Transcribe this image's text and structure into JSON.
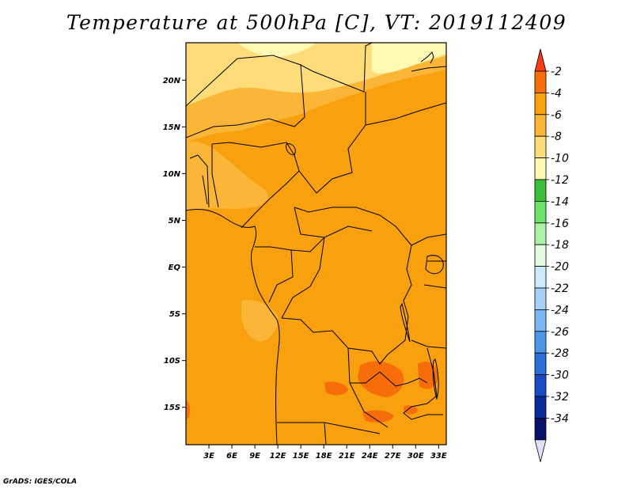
{
  "title": "Temperature at 500hPa [C], VT: 2019112409",
  "credit": "GrADS: IGES/COLA",
  "map": {
    "lon_range": [
      0,
      34
    ],
    "lat_range": [
      -19,
      24
    ],
    "lon_ticks": [
      {
        "lon": 3,
        "label": "3E"
      },
      {
        "lon": 6,
        "label": "6E"
      },
      {
        "lon": 9,
        "label": "9E"
      },
      {
        "lon": 12,
        "label": "12E"
      },
      {
        "lon": 15,
        "label": "15E"
      },
      {
        "lon": 18,
        "label": "18E"
      },
      {
        "lon": 21,
        "label": "21E"
      },
      {
        "lon": 24,
        "label": "24E"
      },
      {
        "lon": 27,
        "label": "27E"
      },
      {
        "lon": 30,
        "label": "30E"
      },
      {
        "lon": 33,
        "label": "33E"
      }
    ],
    "lat_ticks": [
      {
        "lat": 20,
        "label": "20N"
      },
      {
        "lat": 15,
        "label": "15N"
      },
      {
        "lat": 10,
        "label": "10N"
      },
      {
        "lat": 5,
        "label": "5N"
      },
      {
        "lat": 0,
        "label": "EQ"
      },
      {
        "lat": -5,
        "label": "5S"
      },
      {
        "lat": -10,
        "label": "10S"
      },
      {
        "lat": -15,
        "label": "15S"
      }
    ]
  },
  "colorbar": {
    "levels": [
      "-2",
      "-4",
      "-6",
      "-8",
      "-10",
      "-12",
      "-14",
      "-16",
      "-18",
      "-20",
      "-22",
      "-24",
      "-26",
      "-28",
      "-30",
      "-32",
      "-34"
    ],
    "colors": [
      "#fa3c14",
      "#f66d0a",
      "#f8a00e",
      "#fbb637",
      "#fddc79",
      "#fdf8b2",
      "#3bbf3b",
      "#6be36b",
      "#aef0a8",
      "#e4fae2",
      "#cdeafa",
      "#a6d0f5",
      "#7cb6f0",
      "#4d95e8",
      "#2a6fdc",
      "#1a4bc4",
      "#0c2b9b",
      "#08106a",
      "#e0e0fa"
    ]
  },
  "colors": {
    "base": "#f8a00e",
    "yellow_band": "#fddc79",
    "light_band": "#fbb637",
    "pale_band": "#fdf8b2",
    "warm_patch": "#f66d0a"
  }
}
